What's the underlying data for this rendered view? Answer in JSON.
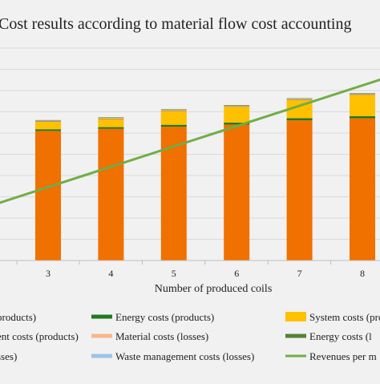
{
  "chart_data": {
    "type": "bar",
    "title": "Cost results according to material flow cost accounting",
    "xlabel": "Number of produced coils",
    "ylabel": "",
    "categories": [
      "3",
      "4",
      "5",
      "6",
      "7",
      "8"
    ],
    "ylim": [
      0,
      100
    ],
    "grid": true,
    "stacked": true,
    "series": [
      {
        "name": "Material costs (products)",
        "color": "#f07000",
        "values": [
          61,
          62,
          63,
          64,
          66,
          67
        ]
      },
      {
        "name": "Energy costs (products)",
        "color": "#1f7a1f",
        "values": [
          0.8,
          0.8,
          0.9,
          0.9,
          1.0,
          1.0
        ]
      },
      {
        "name": "System costs (products)",
        "color": "#ffc000",
        "values": [
          3.5,
          3.8,
          6.5,
          7.5,
          8.6,
          10.0
        ]
      },
      {
        "name": "Waste management costs (products)",
        "color": "#7f7f7f",
        "values": [
          0.3,
          0.3,
          0.3,
          0.3,
          0.3,
          0.3
        ]
      },
      {
        "name": "Material costs (losses)",
        "color": "#f8b88b",
        "values": [
          0.3,
          0.3,
          0.3,
          0.3,
          0.3,
          0.3
        ]
      },
      {
        "name": "Energy costs (losses)",
        "color": "#548235",
        "values": [
          0.2,
          0.2,
          0.2,
          0.2,
          0.2,
          0.2
        ]
      },
      {
        "name": "System costs (losses)",
        "color": "#bfbfbf",
        "values": [
          0,
          0,
          0,
          0,
          0,
          0
        ]
      },
      {
        "name": "Waste management costs (losses)",
        "color": "#9dc3e6",
        "values": [
          0,
          0,
          0,
          0,
          0,
          0
        ]
      }
    ],
    "line_series": {
      "name": "Revenues per month",
      "color": "#70ad47",
      "x": [
        2,
        9
      ],
      "values": [
        25,
        92
      ]
    },
    "legend": {
      "placement": "bottom",
      "visible_labels": [
        "products)",
        "Energy costs (products)",
        "System costs (products)",
        "ent costs (products)",
        "Material costs (losses)",
        "Energy costs (l",
        "sses)",
        "Waste management costs (losses)",
        "Revenues per m"
      ]
    }
  }
}
